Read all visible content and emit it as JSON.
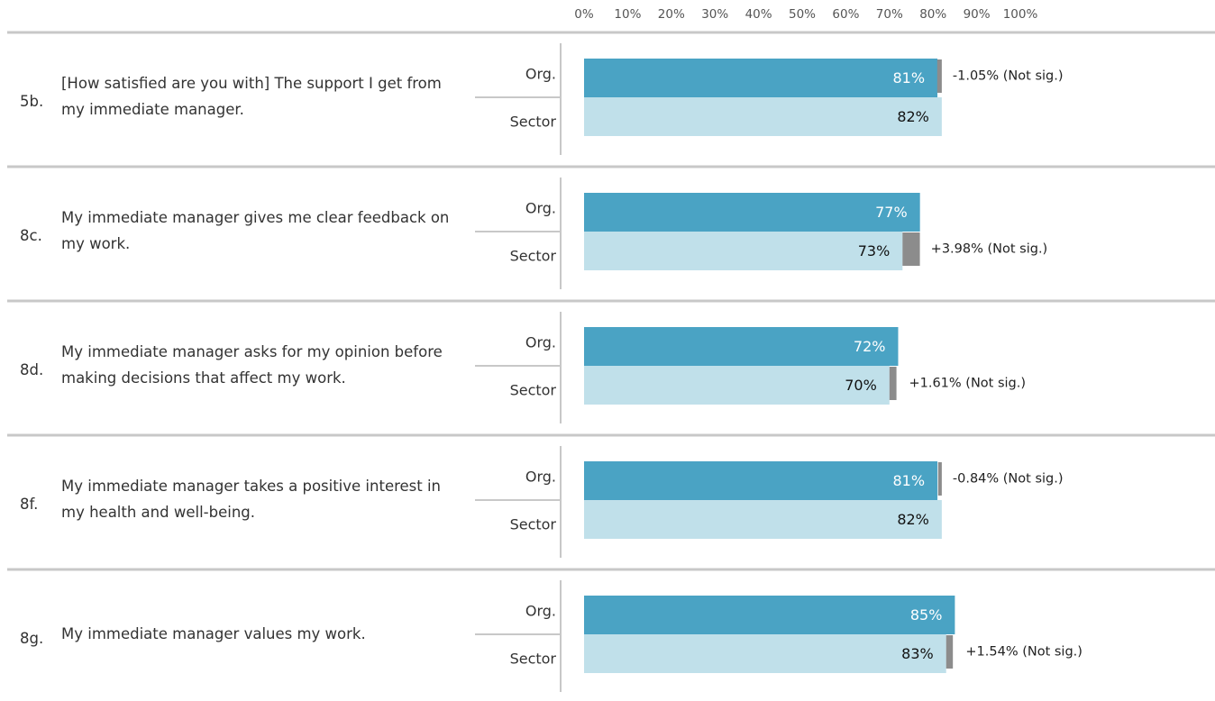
{
  "chart_data": {
    "type": "bar",
    "codes": [
      "5b.",
      "8c.",
      "8d.",
      "8f.",
      "8g."
    ],
    "categories": [
      "[How satisfied are you with] The support I get from my immediate manager.",
      "My immediate manager gives me clear feedback on my work.",
      "My immediate manager asks for my opinion before making decisions that affect my work.",
      "My immediate manager takes a positive interest in my health and well-being.",
      "My immediate manager values my work."
    ],
    "series": [
      {
        "name": "Org.",
        "color": "#4aa3c4",
        "values": [
          81,
          77,
          72,
          81,
          85
        ],
        "value_labels": [
          "81%",
          "77%",
          "72%",
          "81%",
          "85%"
        ]
      },
      {
        "name": "Sector",
        "color": "#c0e0ea",
        "values": [
          82,
          73,
          70,
          82,
          83
        ],
        "value_labels": [
          "82%",
          "73%",
          "70%",
          "82%",
          "83%"
        ]
      }
    ],
    "differences": [
      -1.05,
      3.98,
      1.61,
      -0.84,
      1.54
    ],
    "difference_labels": [
      "-1.05% (Not sig.)",
      "+3.98% (Not sig.)",
      "+1.61% (Not sig.)",
      "-0.84% (Not sig.)",
      "+1.54% (Not sig.)"
    ],
    "difference_color": "#8c8c8c",
    "xlim": [
      0,
      100
    ],
    "xticks": [
      {
        "value": 0,
        "label": "0%"
      },
      {
        "value": 10,
        "label": "10%"
      },
      {
        "value": 20,
        "label": "20%"
      },
      {
        "value": 30,
        "label": "30%"
      },
      {
        "value": 40,
        "label": "40%"
      },
      {
        "value": 50,
        "label": "50%"
      },
      {
        "value": 60,
        "label": "60%"
      },
      {
        "value": 70,
        "label": "70%"
      },
      {
        "value": 80,
        "label": "80%"
      },
      {
        "value": 90,
        "label": "90%"
      },
      {
        "value": 100,
        "label": "100%"
      }
    ]
  }
}
